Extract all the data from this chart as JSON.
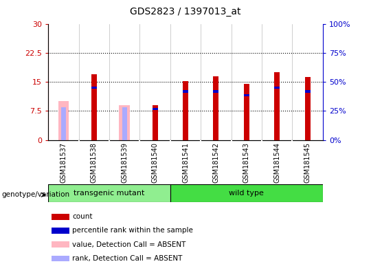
{
  "title": "GDS2823 / 1397013_at",
  "samples": [
    "GSM181537",
    "GSM181538",
    "GSM181539",
    "GSM181540",
    "GSM181541",
    "GSM181542",
    "GSM181543",
    "GSM181544",
    "GSM181545"
  ],
  "count_values": [
    null,
    17.0,
    null,
    9.0,
    15.2,
    16.5,
    14.5,
    17.5,
    16.2
  ],
  "absent_value_values": [
    10.0,
    null,
    9.0,
    null,
    null,
    null,
    null,
    null,
    null
  ],
  "percentile_rank": [
    null,
    13.5,
    null,
    8.0,
    12.5,
    12.5,
    11.5,
    13.5,
    12.5
  ],
  "absent_rank_values": [
    8.5,
    null,
    8.5,
    null,
    null,
    null,
    null,
    null,
    null
  ],
  "groups": [
    "transgenic mutant",
    "transgenic mutant",
    "transgenic mutant",
    "transgenic mutant",
    "wild type",
    "wild type",
    "wild type",
    "wild type",
    "wild type"
  ],
  "group_colors": {
    "transgenic mutant": "#90EE90",
    "wild type": "#44DD44"
  },
  "count_color": "#CC0000",
  "absent_value_color": "#FFB6C1",
  "percentile_color": "#0000CC",
  "absent_rank_color": "#AAAAFF",
  "ylim_left": [
    0,
    30
  ],
  "ylim_right": [
    0,
    100
  ],
  "yticks_left": [
    0,
    7.5,
    15,
    22.5,
    30
  ],
  "yticks_right": [
    0,
    25,
    50,
    75,
    100
  ],
  "ytick_labels_left": [
    "0",
    "7.5",
    "15",
    "22.5",
    "30"
  ],
  "ytick_labels_right": [
    "0%",
    "25%",
    "50%",
    "75%",
    "100%"
  ],
  "genotype_label": "genotype/variation",
  "legend_items": [
    {
      "label": "count",
      "color": "#CC0000"
    },
    {
      "label": "percentile rank within the sample",
      "color": "#0000CC"
    },
    {
      "label": "value, Detection Call = ABSENT",
      "color": "#FFB6C1"
    },
    {
      "label": "rank, Detection Call = ABSENT",
      "color": "#AAAAFF"
    }
  ]
}
